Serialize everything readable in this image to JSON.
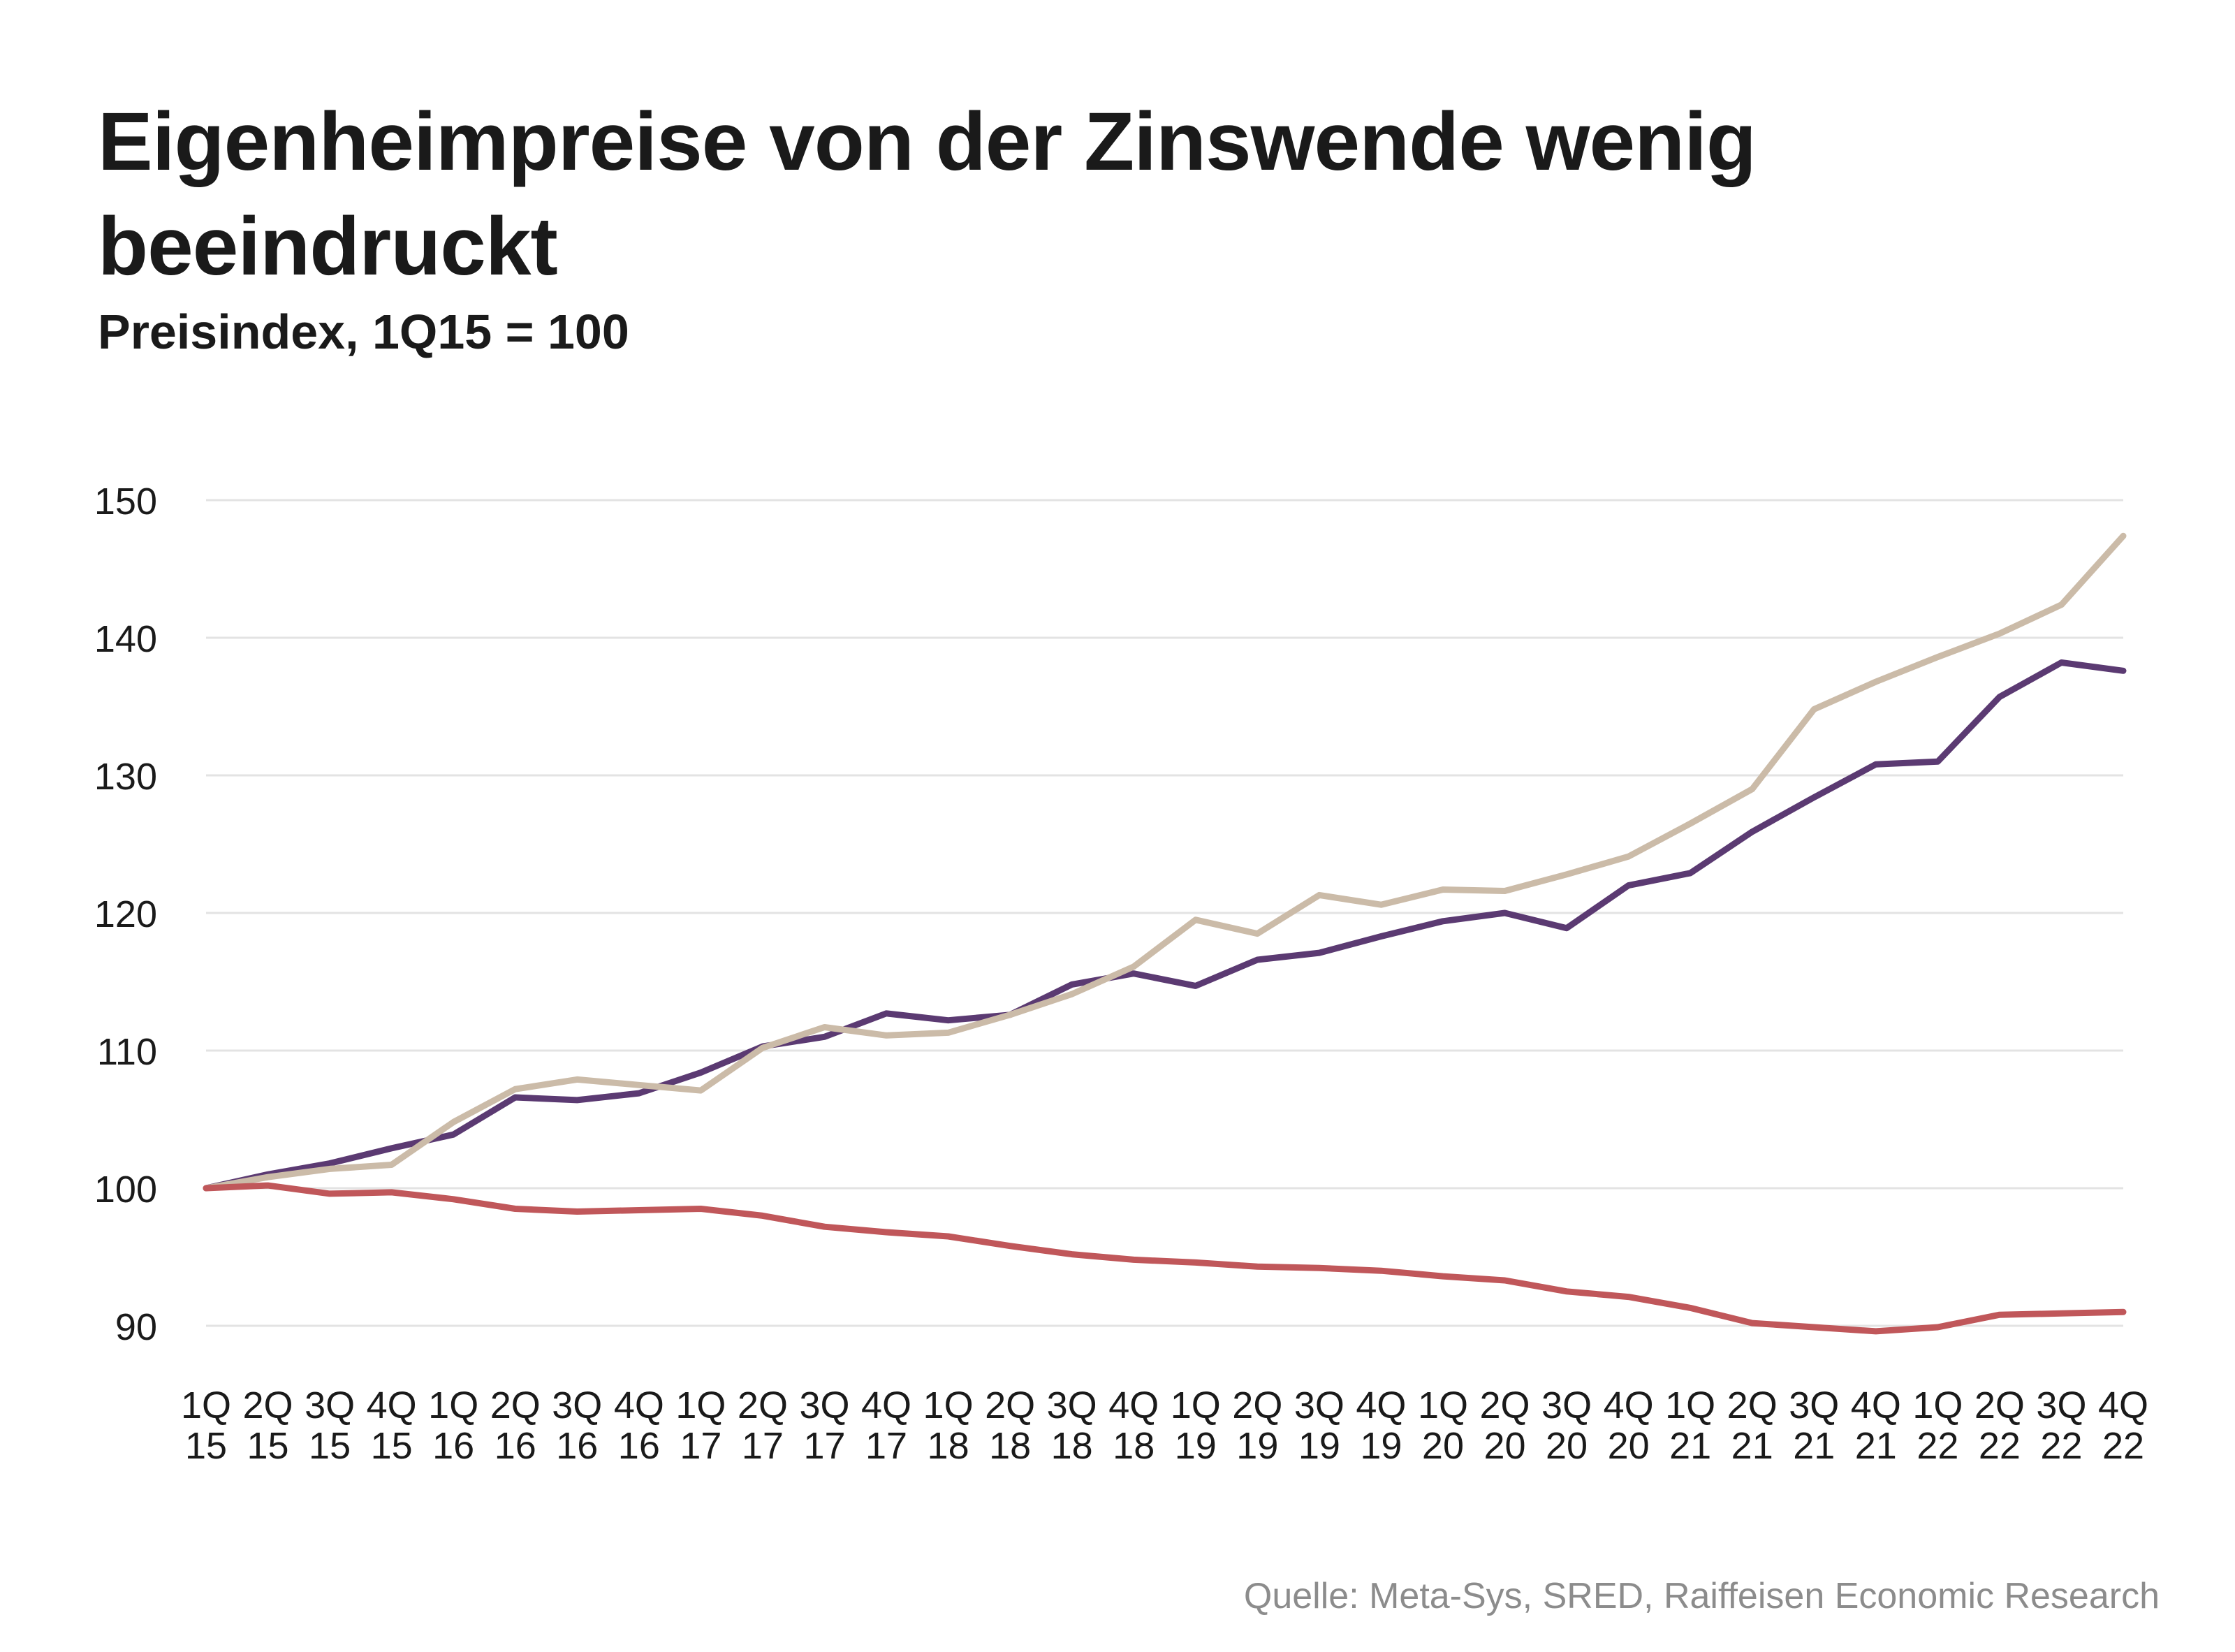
{
  "title": "Eigenheimpreise von der Zinswende wenig beeindruckt",
  "subtitle": "Preisindex, 1Q15 = 100",
  "source": "Quelle: Meta-Sys, SRED, Raiffeisen Economic Research",
  "chart_data": {
    "type": "line",
    "title": "Eigenheimpreise von der Zinswende wenig beeindruckt",
    "subtitle": "Preisindex, 1Q15 = 100",
    "xlabel": "",
    "ylabel": "",
    "ylim": [
      90,
      150
    ],
    "yticks": [
      90,
      100,
      110,
      120,
      130,
      140,
      150
    ],
    "grid": true,
    "legend": "none",
    "categories": [
      [
        "1Q",
        "15"
      ],
      [
        "2Q",
        "15"
      ],
      [
        "3Q",
        "15"
      ],
      [
        "4Q",
        "15"
      ],
      [
        "1Q",
        "16"
      ],
      [
        "2Q",
        "16"
      ],
      [
        "3Q",
        "16"
      ],
      [
        "4Q",
        "16"
      ],
      [
        "1Q",
        "17"
      ],
      [
        "2Q",
        "17"
      ],
      [
        "3Q",
        "17"
      ],
      [
        "4Q",
        "17"
      ],
      [
        "1Q",
        "18"
      ],
      [
        "2Q",
        "18"
      ],
      [
        "3Q",
        "18"
      ],
      [
        "4Q",
        "18"
      ],
      [
        "1Q",
        "19"
      ],
      [
        "2Q",
        "19"
      ],
      [
        "3Q",
        "19"
      ],
      [
        "4Q",
        "19"
      ],
      [
        "1Q",
        "20"
      ],
      [
        "2Q",
        "20"
      ],
      [
        "3Q",
        "20"
      ],
      [
        "4Q",
        "20"
      ],
      [
        "1Q",
        "21"
      ],
      [
        "2Q",
        "21"
      ],
      [
        "3Q",
        "21"
      ],
      [
        "4Q",
        "21"
      ],
      [
        "1Q",
        "22"
      ],
      [
        "2Q",
        "22"
      ],
      [
        "3Q",
        "22"
      ],
      [
        "4Q",
        "22"
      ]
    ],
    "series": [
      {
        "name": "purple",
        "color": "#5b3a72",
        "values": [
          100,
          101.0,
          101.8,
          102.9,
          103.9,
          106.6,
          106.4,
          106.9,
          108.4,
          110.3,
          111.0,
          112.7,
          112.2,
          112.6,
          114.8,
          115.6,
          114.7,
          116.6,
          117.1,
          118.3,
          119.4,
          120.0,
          118.9,
          122.0,
          122.9,
          125.9,
          128.4,
          130.8,
          131.0,
          135.7,
          138.2,
          137.6
        ]
      },
      {
        "name": "beige",
        "color": "#cbbba8",
        "values": [
          100,
          100.8,
          101.4,
          101.7,
          104.8,
          107.2,
          107.9,
          107.5,
          107.1,
          110.2,
          111.7,
          111.1,
          111.3,
          112.6,
          114.1,
          116.1,
          119.5,
          118.5,
          121.3,
          120.6,
          121.7,
          121.6,
          122.8,
          124.1,
          126.5,
          129.0,
          134.8,
          136.8,
          138.6,
          140.3,
          142.4,
          147.4
        ]
      },
      {
        "name": "red",
        "color": "#c0575a",
        "values": [
          100,
          100.2,
          99.6,
          99.7,
          99.2,
          98.5,
          98.3,
          98.4,
          98.5,
          98.0,
          97.2,
          96.8,
          96.5,
          95.8,
          95.2,
          94.8,
          94.6,
          94.3,
          94.2,
          94.0,
          93.6,
          93.3,
          92.5,
          92.1,
          91.3,
          90.2,
          89.9,
          89.6,
          89.9,
          90.8,
          90.9,
          91.0
        ]
      }
    ]
  }
}
